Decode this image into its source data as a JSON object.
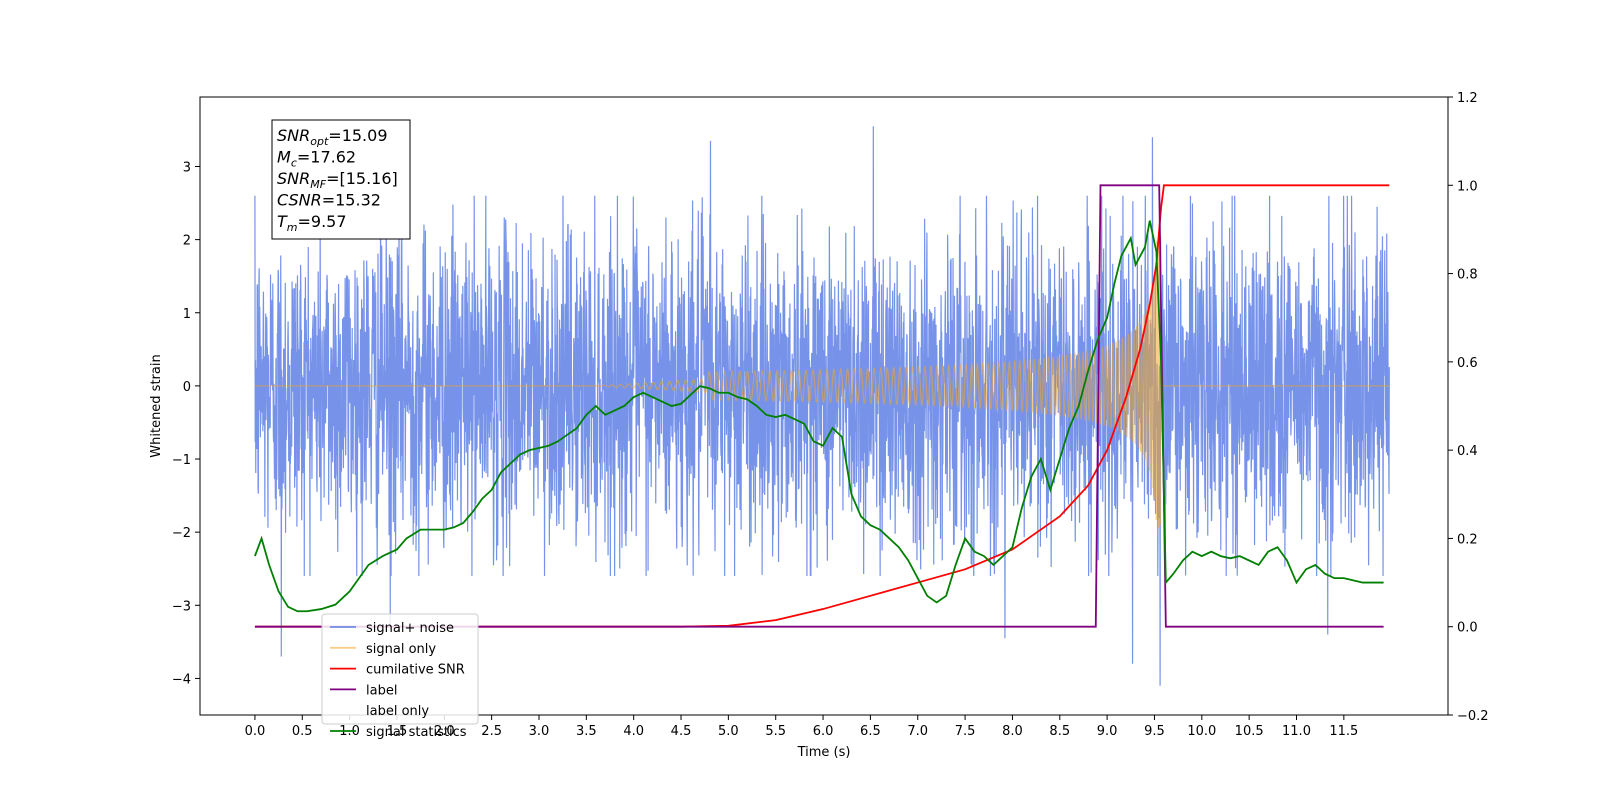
{
  "chart_data": {
    "type": "line",
    "title": "",
    "xlabel": "Time (s)",
    "ylabel": "Whitened strain",
    "y2label": "",
    "xlim": [
      -0.58,
      12.6
    ],
    "ylim": [
      -4.5,
      3.95
    ],
    "y2lim": [
      -0.2,
      1.2
    ],
    "x_ticks": [
      0.0,
      0.5,
      1.0,
      1.5,
      2.0,
      2.5,
      3.0,
      3.5,
      4.0,
      4.5,
      5.0,
      5.5,
      6.0,
      6.5,
      7.0,
      7.5,
      8.0,
      8.5,
      9.0,
      9.5,
      10.0,
      10.5,
      11.0,
      11.5
    ],
    "x_tick_labels": [
      "0.0",
      "0.5",
      "1.0",
      "1.5",
      "2.0",
      "2.5",
      "3.0",
      "3.5",
      "4.0",
      "4.5",
      "5.0",
      "5.5",
      "6.0",
      "6.5",
      "7.0",
      "7.5",
      "8.0",
      "8.5",
      "9.0",
      "9.5",
      "10.0",
      "10.5",
      "11.0",
      "11.5"
    ],
    "y_ticks": [
      -4,
      -3,
      -2,
      -1,
      0,
      1,
      2,
      3
    ],
    "y_tick_labels": [
      "−4",
      "−3",
      "−2",
      "−1",
      "0",
      "1",
      "2",
      "3"
    ],
    "y2_ticks": [
      -0.2,
      0.0,
      0.2,
      0.4,
      0.6,
      0.8,
      1.0,
      1.2
    ],
    "y2_tick_labels": [
      "−0.2",
      "0.0",
      "0.2",
      "0.4",
      "0.6",
      "0.8",
      "1.0",
      "1.2"
    ],
    "grid": false,
    "legend_placement": "lower-left",
    "annotation": {
      "lines": [
        {
          "main": "SNR",
          "sub": "opt",
          "rest": "=15.09"
        },
        {
          "main": "M",
          "sub": "c",
          "rest": "=17.62"
        },
        {
          "main": "SNR",
          "sub": "MF",
          "rest": "=[15.16]"
        },
        {
          "main": "CSNR",
          "sub": "",
          "rest": "=15.32"
        },
        {
          "main": "T",
          "sub": "m",
          "rest": "=9.57"
        }
      ]
    },
    "series": [
      {
        "name": "signal+ noise",
        "axis": "left",
        "color": "#4169e1",
        "kind": "noise",
        "x_range": [
          0.0,
          11.98
        ],
        "typical_range": [
          -1.7,
          1.7
        ],
        "extremes": [
          {
            "x": 0.28,
            "y": -3.7
          },
          {
            "x": 1.43,
            "y": -3.3
          },
          {
            "x": 4.81,
            "y": 3.35
          },
          {
            "x": 6.53,
            "y": 3.55
          },
          {
            "x": 7.92,
            "y": -3.45
          },
          {
            "x": 9.27,
            "y": -3.8
          },
          {
            "x": 9.48,
            "y": 3.4
          },
          {
            "x": 9.56,
            "y": -4.1
          },
          {
            "x": 11.33,
            "y": -3.4
          }
        ]
      },
      {
        "name": "signal only",
        "axis": "left",
        "color": "#f5a623",
        "kind": "chirp",
        "x_range": [
          0.0,
          11.98
        ],
        "merger_time": 9.57,
        "peak_amplitude": 2.05
      },
      {
        "name": "cumilative SNR",
        "axis": "right",
        "color": "#ff0000",
        "x": [
          0.0,
          4.5,
          5.0,
          5.5,
          6.0,
          6.5,
          7.0,
          7.5,
          8.0,
          8.5,
          8.8,
          9.0,
          9.2,
          9.35,
          9.45,
          9.52,
          9.57,
          9.6,
          11.98
        ],
        "y": [
          0.0,
          0.0,
          0.002,
          0.015,
          0.04,
          0.07,
          0.1,
          0.13,
          0.175,
          0.25,
          0.32,
          0.4,
          0.52,
          0.63,
          0.73,
          0.82,
          0.95,
          1.0,
          1.0
        ]
      },
      {
        "name": "label",
        "axis": "right",
        "color": "#800080",
        "x": [
          0.0,
          8.88,
          8.93,
          9.55,
          9.62,
          11.92
        ],
        "y": [
          0.0,
          0.0,
          1.0,
          1.0,
          0.0,
          0.0
        ]
      },
      {
        "name": "label only",
        "axis": "right",
        "color": "#ffffff",
        "x": [],
        "y": []
      },
      {
        "name": "signal statistics",
        "axis": "right",
        "color": "#008000",
        "x": [
          0.0,
          0.07,
          0.15,
          0.25,
          0.35,
          0.45,
          0.55,
          0.7,
          0.85,
          1.0,
          1.1,
          1.2,
          1.35,
          1.5,
          1.6,
          1.75,
          1.9,
          2.0,
          2.1,
          2.2,
          2.3,
          2.4,
          2.5,
          2.6,
          2.7,
          2.8,
          2.9,
          3.0,
          3.1,
          3.2,
          3.3,
          3.4,
          3.5,
          3.6,
          3.7,
          3.8,
          3.9,
          4.0,
          4.1,
          4.2,
          4.3,
          4.4,
          4.5,
          4.6,
          4.7,
          4.8,
          4.9,
          5.0,
          5.1,
          5.2,
          5.3,
          5.4,
          5.5,
          5.6,
          5.7,
          5.8,
          5.9,
          6.0,
          6.1,
          6.2,
          6.3,
          6.4,
          6.5,
          6.6,
          6.7,
          6.8,
          6.9,
          7.0,
          7.1,
          7.2,
          7.3,
          7.4,
          7.5,
          7.6,
          7.7,
          7.8,
          7.9,
          8.0,
          8.1,
          8.2,
          8.3,
          8.4,
          8.5,
          8.6,
          8.7,
          8.8,
          8.9,
          9.0,
          9.08,
          9.15,
          9.25,
          9.3,
          9.4,
          9.45,
          9.52,
          9.57,
          9.62,
          9.7,
          9.8,
          9.9,
          10.0,
          10.1,
          10.2,
          10.3,
          10.4,
          10.5,
          10.6,
          10.7,
          10.8,
          10.9,
          11.0,
          11.1,
          11.2,
          11.3,
          11.4,
          11.5,
          11.6,
          11.7,
          11.8,
          11.92
        ],
        "y": [
          0.16,
          0.2,
          0.14,
          0.08,
          0.045,
          0.035,
          0.035,
          0.04,
          0.05,
          0.08,
          0.11,
          0.14,
          0.16,
          0.175,
          0.2,
          0.22,
          0.22,
          0.22,
          0.225,
          0.235,
          0.26,
          0.29,
          0.31,
          0.35,
          0.37,
          0.39,
          0.4,
          0.405,
          0.41,
          0.42,
          0.435,
          0.45,
          0.48,
          0.5,
          0.48,
          0.49,
          0.5,
          0.52,
          0.53,
          0.52,
          0.51,
          0.5,
          0.505,
          0.525,
          0.545,
          0.54,
          0.53,
          0.53,
          0.52,
          0.515,
          0.5,
          0.48,
          0.475,
          0.48,
          0.47,
          0.46,
          0.42,
          0.41,
          0.45,
          0.43,
          0.3,
          0.25,
          0.23,
          0.22,
          0.2,
          0.18,
          0.15,
          0.11,
          0.07,
          0.055,
          0.07,
          0.14,
          0.2,
          0.17,
          0.16,
          0.14,
          0.16,
          0.18,
          0.27,
          0.34,
          0.38,
          0.31,
          0.38,
          0.45,
          0.5,
          0.58,
          0.65,
          0.7,
          0.78,
          0.84,
          0.88,
          0.82,
          0.86,
          0.92,
          0.85,
          0.6,
          0.1,
          0.12,
          0.15,
          0.17,
          0.16,
          0.17,
          0.16,
          0.155,
          0.16,
          0.15,
          0.14,
          0.17,
          0.18,
          0.15,
          0.1,
          0.13,
          0.14,
          0.12,
          0.11,
          0.11,
          0.105,
          0.1,
          0.1,
          0.1
        ]
      }
    ]
  }
}
